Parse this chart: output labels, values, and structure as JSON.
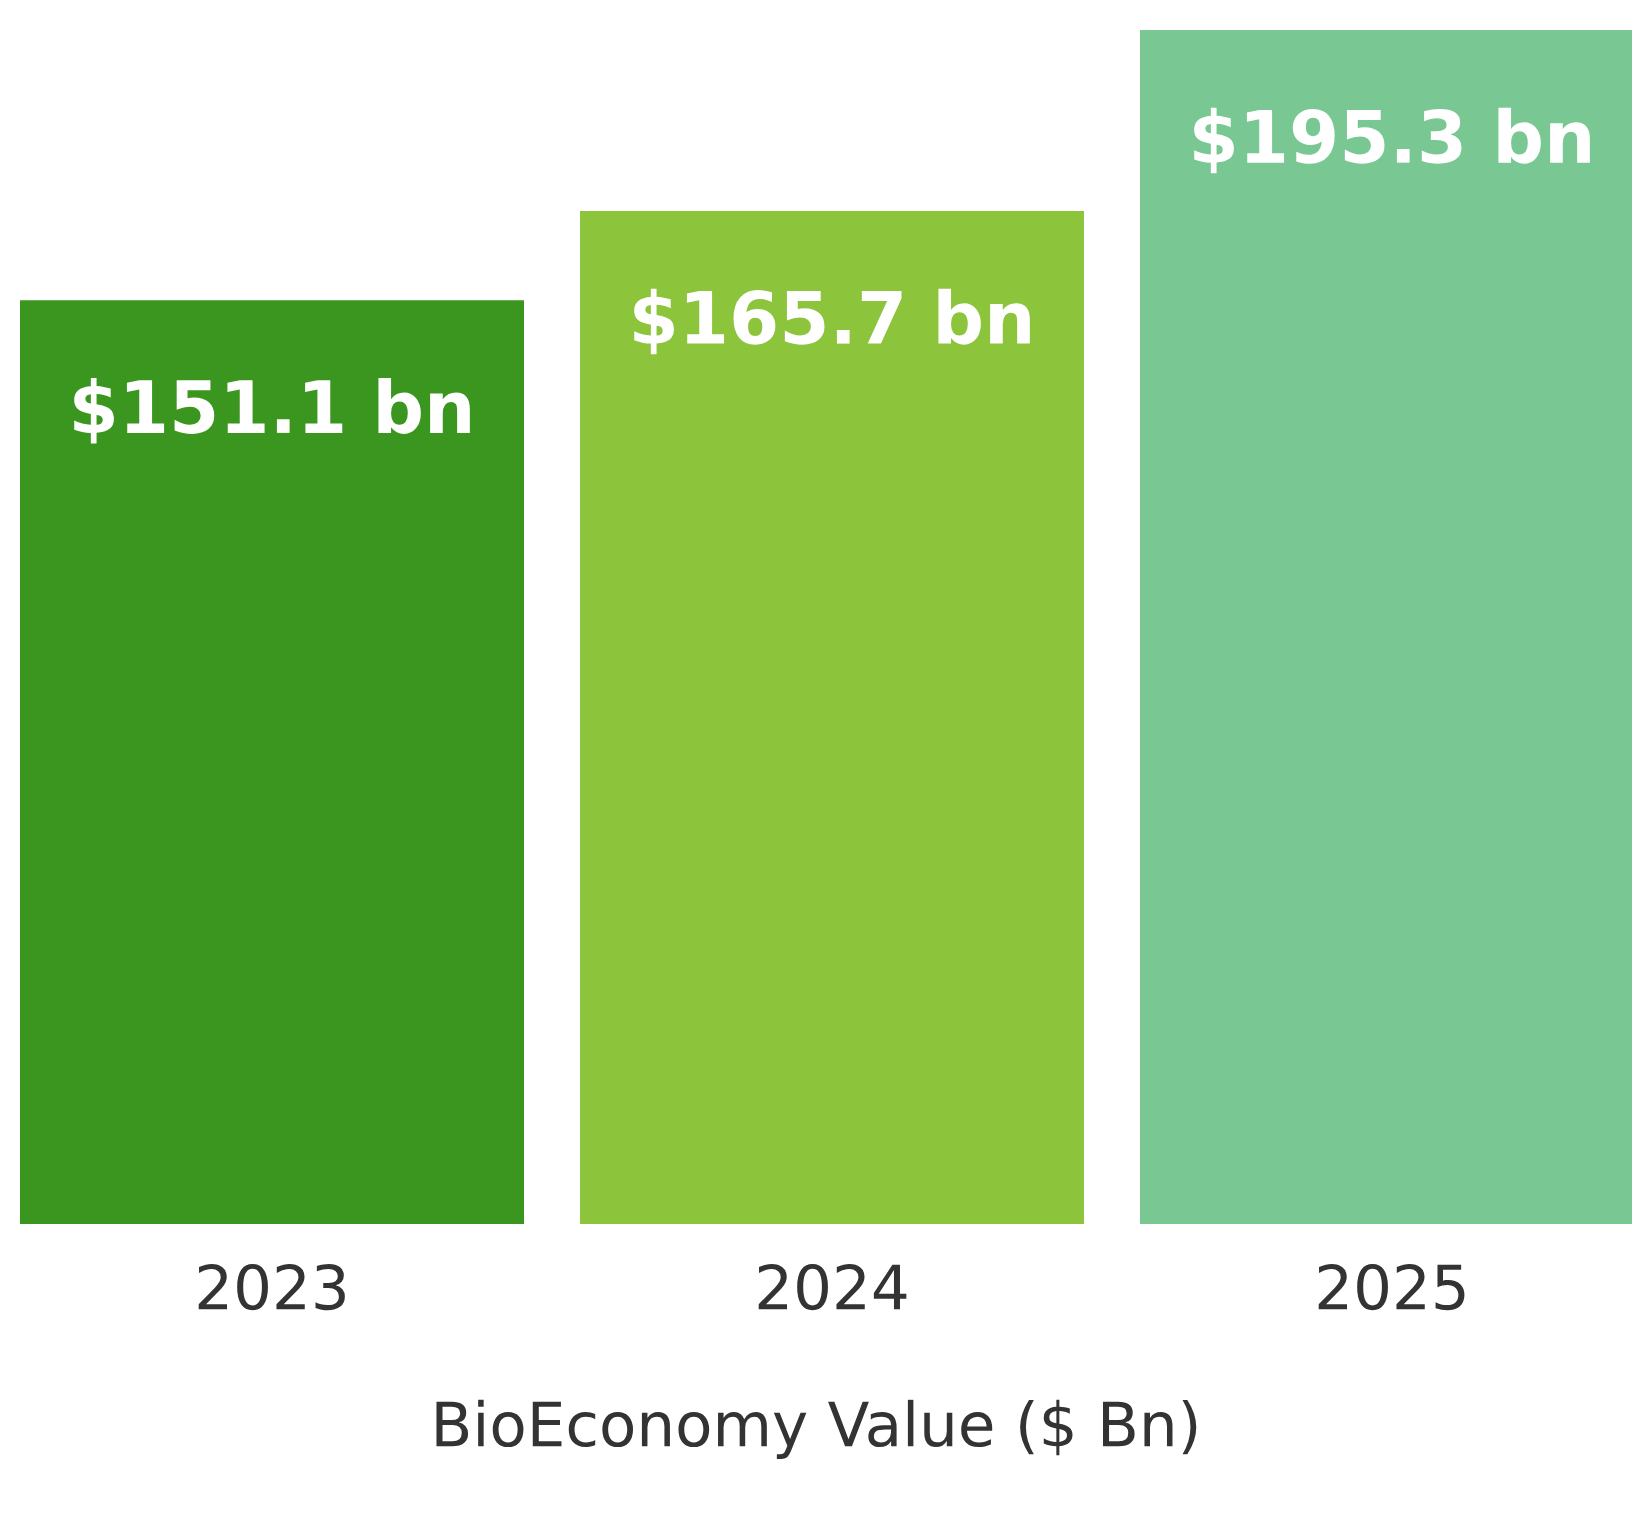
{
  "chart_data": {
    "type": "bar",
    "xlabel": "BioEconomy Value ($ Bn)",
    "categories": [
      "2023",
      "2024",
      "2025"
    ],
    "values": [
      151.1,
      165.7,
      195.3
    ],
    "colors": [
      "#3a961e",
      "#8cc43c",
      "#79c893"
    ],
    "value_labels": [
      "$151.1 bn",
      "$165.7 bn",
      "$195.3 bn"
    ],
    "relative": false,
    "grid": false,
    "legend": false
  }
}
